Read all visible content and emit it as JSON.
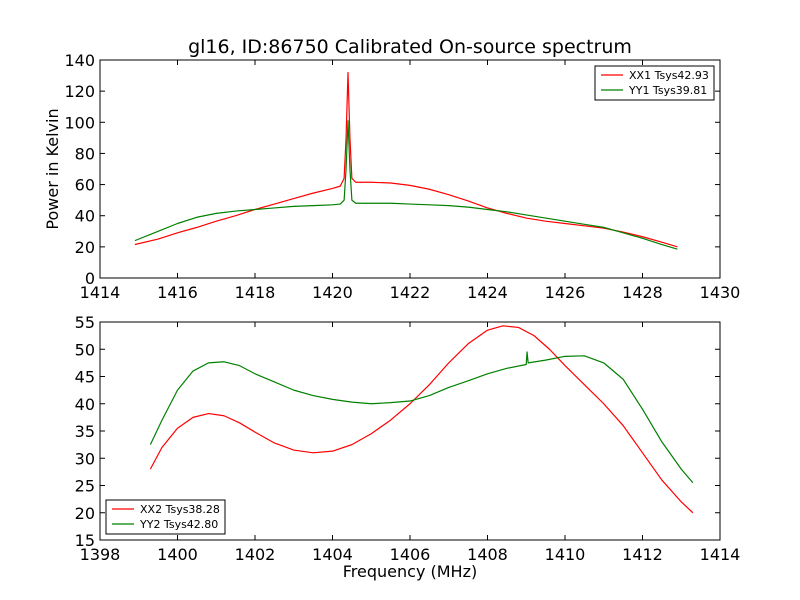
{
  "chart_data": [
    {
      "type": "line",
      "title": "gl16, ID:86750 Calibrated On-source spectrum",
      "xlabel": "",
      "ylabel": "Power in Kelvin",
      "xlim": [
        1414,
        1430
      ],
      "ylim": [
        0,
        140
      ],
      "xticks": [
        "1414",
        "1416",
        "1418",
        "1420",
        "1422",
        "1424",
        "1426",
        "1428",
        "1430"
      ],
      "yticks": [
        "0",
        "20",
        "40",
        "60",
        "80",
        "100",
        "120",
        "140"
      ],
      "legend_position": "top-right",
      "series": [
        {
          "name": "XX1 Tsys42.93",
          "color": "#ff0000",
          "x": [
            1414.9,
            1415.5,
            1416.0,
            1416.5,
            1417.0,
            1417.5,
            1418.0,
            1418.5,
            1419.0,
            1419.5,
            1420.0,
            1420.2,
            1420.3,
            1420.35,
            1420.4,
            1420.45,
            1420.5,
            1420.6,
            1421.0,
            1421.5,
            1422.0,
            1422.5,
            1423.0,
            1423.5,
            1424.0,
            1424.5,
            1425.0,
            1425.5,
            1426.0,
            1426.5,
            1427.0,
            1427.5,
            1428.0,
            1428.5,
            1428.9
          ],
          "y": [
            21.5,
            25.0,
            29.0,
            32.5,
            36.5,
            40.0,
            44.0,
            47.5,
            51.0,
            54.5,
            57.5,
            59.0,
            64.0,
            90.0,
            132.0,
            90.0,
            64.0,
            61.5,
            61.5,
            61.0,
            59.5,
            57.0,
            53.5,
            49.5,
            45.0,
            41.5,
            38.5,
            36.5,
            35.0,
            33.5,
            32.0,
            29.5,
            26.5,
            23.0,
            20.0
          ]
        },
        {
          "name": "YY1 Tsys39.81",
          "color": "#008000",
          "x": [
            1414.9,
            1415.5,
            1416.0,
            1416.5,
            1417.0,
            1417.5,
            1418.0,
            1418.5,
            1419.0,
            1419.5,
            1420.0,
            1420.2,
            1420.3,
            1420.35,
            1420.4,
            1420.45,
            1420.5,
            1420.6,
            1421.0,
            1421.5,
            1422.0,
            1422.5,
            1423.0,
            1423.5,
            1424.0,
            1424.5,
            1425.0,
            1425.5,
            1426.0,
            1426.5,
            1427.0,
            1427.5,
            1428.0,
            1428.5,
            1428.9
          ],
          "y": [
            24.0,
            30.0,
            35.0,
            39.0,
            41.5,
            43.0,
            44.0,
            45.0,
            46.0,
            46.5,
            47.0,
            47.5,
            50.0,
            70.0,
            101.0,
            70.0,
            50.0,
            48.0,
            48.0,
            48.0,
            47.5,
            47.0,
            46.5,
            45.5,
            44.0,
            42.5,
            40.5,
            38.5,
            36.5,
            34.5,
            32.5,
            29.0,
            25.5,
            21.5,
            18.5
          ]
        }
      ]
    },
    {
      "type": "line",
      "title": "",
      "xlabel": "Frequency (MHz)",
      "ylabel": "",
      "xlim": [
        1398,
        1414
      ],
      "ylim": [
        15,
        55
      ],
      "xticks": [
        "1398",
        "1400",
        "1402",
        "1404",
        "1406",
        "1408",
        "1410",
        "1412",
        "1414"
      ],
      "yticks": [
        "15",
        "20",
        "25",
        "30",
        "35",
        "40",
        "45",
        "50",
        "55"
      ],
      "legend_position": "bottom-left",
      "series": [
        {
          "name": "XX2 Tsys38.28",
          "color": "#ff0000",
          "x": [
            1399.3,
            1399.6,
            1400.0,
            1400.4,
            1400.8,
            1401.2,
            1401.6,
            1402.0,
            1402.5,
            1403.0,
            1403.5,
            1404.0,
            1404.5,
            1405.0,
            1405.5,
            1406.0,
            1406.5,
            1407.0,
            1407.5,
            1408.0,
            1408.4,
            1408.8,
            1409.2,
            1409.6,
            1410.0,
            1410.5,
            1411.0,
            1411.5,
            1412.0,
            1412.5,
            1413.0,
            1413.3
          ],
          "y": [
            28.0,
            32.0,
            35.5,
            37.5,
            38.2,
            37.8,
            36.5,
            34.8,
            32.8,
            31.5,
            31.0,
            31.3,
            32.5,
            34.5,
            37.0,
            40.0,
            43.5,
            47.5,
            51.0,
            53.5,
            54.3,
            54.0,
            52.5,
            50.0,
            47.0,
            43.5,
            40.0,
            36.0,
            31.0,
            26.0,
            22.0,
            20.0
          ]
        },
        {
          "name": "YY2 Tsys42.80",
          "color": "#008000",
          "x": [
            1399.3,
            1399.6,
            1400.0,
            1400.4,
            1400.8,
            1401.2,
            1401.6,
            1402.0,
            1402.5,
            1403.0,
            1403.5,
            1404.0,
            1404.5,
            1405.0,
            1405.5,
            1406.0,
            1406.5,
            1407.0,
            1407.5,
            1408.0,
            1408.5,
            1409.0,
            1409.02,
            1409.05,
            1409.5,
            1410.0,
            1410.5,
            1411.0,
            1411.5,
            1412.0,
            1412.5,
            1413.0,
            1413.3
          ],
          "y": [
            32.5,
            37.0,
            42.5,
            46.0,
            47.5,
            47.7,
            47.0,
            45.5,
            44.0,
            42.5,
            41.5,
            40.8,
            40.3,
            40.0,
            40.2,
            40.5,
            41.5,
            43.0,
            44.2,
            45.5,
            46.5,
            47.2,
            49.5,
            47.5,
            48.0,
            48.7,
            48.8,
            47.5,
            44.5,
            39.0,
            33.0,
            28.0,
            25.5
          ]
        }
      ]
    }
  ]
}
